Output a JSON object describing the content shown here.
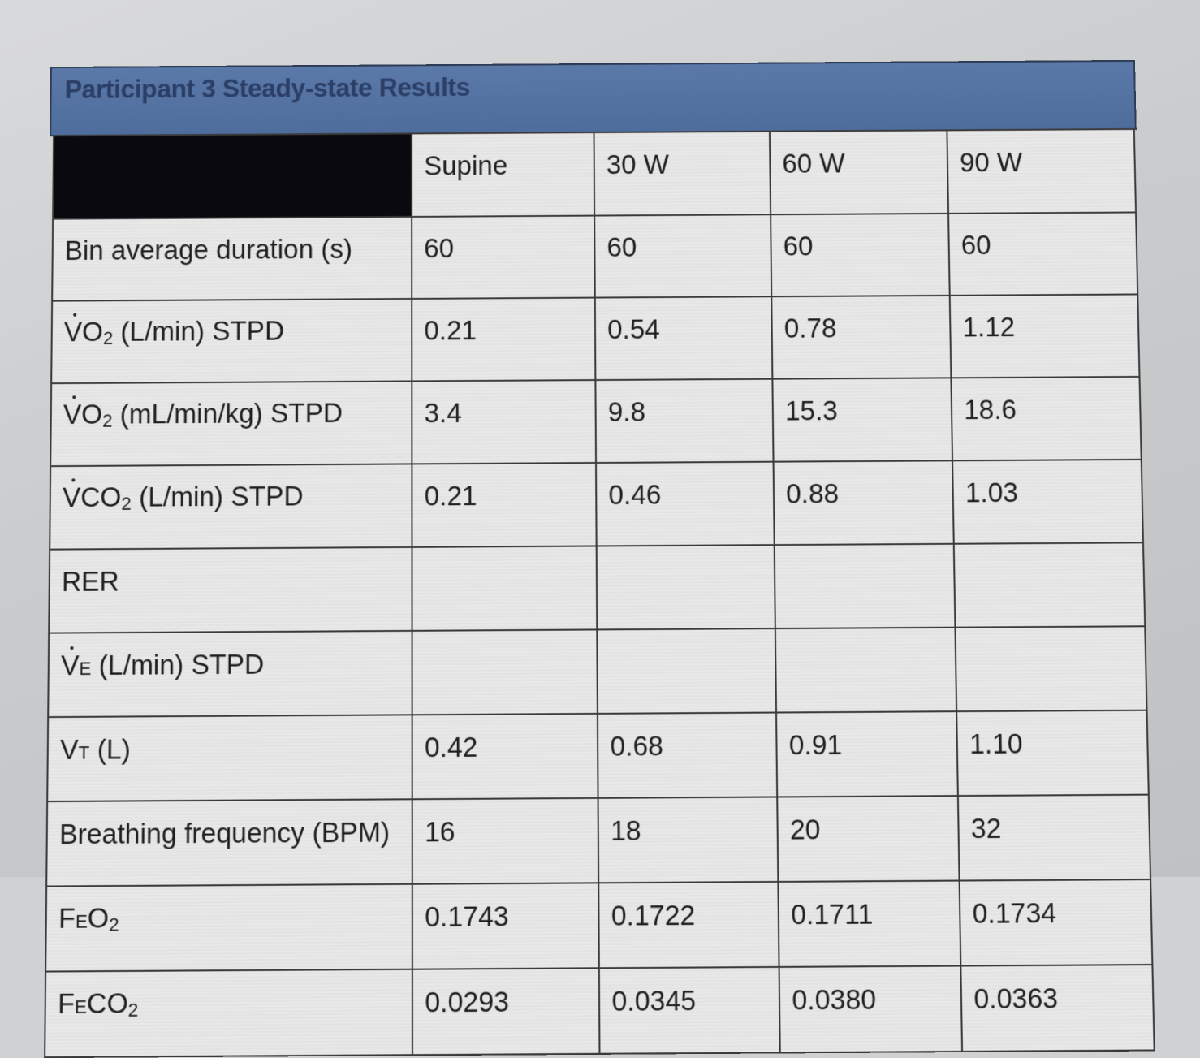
{
  "title": "Participant 3 Steady-state Results",
  "columns": [
    "Supine",
    "30 W",
    "60 W",
    "90 W"
  ],
  "rows": [
    {
      "label": "Bin average duration (s)",
      "values": [
        "60",
        "60",
        "60",
        "60"
      ]
    },
    {
      "label_main": "VO",
      "label_sub": "2",
      "label_rest": " (L/min) STPD",
      "values": [
        "0.21",
        "0.54",
        "0.78",
        "1.12"
      ]
    },
    {
      "label_main": "VO",
      "label_sub": "2",
      "label_rest": " (mL/min/kg) STPD",
      "values": [
        "3.4",
        "9.8",
        "15.3",
        "18.6"
      ]
    },
    {
      "label_main": "VCO",
      "label_sub": "2",
      "label_rest": " (L/min) STPD",
      "values": [
        "0.21",
        "0.46",
        "0.88",
        "1.03"
      ]
    },
    {
      "label": "RER",
      "values": [
        "",
        "",
        "",
        ""
      ]
    },
    {
      "label_main": "V",
      "label_sub": "E",
      "label_rest": " (L/min) STPD",
      "values": [
        "",
        "",
        "",
        ""
      ]
    },
    {
      "label_main": "V",
      "label_sub": "T",
      "label_rest": " (L)",
      "values": [
        "0.42",
        "0.68",
        "0.91",
        "1.10"
      ]
    },
    {
      "label": "Breathing frequency (BPM)",
      "values": [
        "16",
        "18",
        "20",
        "32"
      ]
    },
    {
      "label_main": "F",
      "label_sub": "E",
      "label_rest": "O",
      "label_sub2": "2",
      "values": [
        "0.1743",
        "0.1722",
        "0.1711",
        "0.1734"
      ]
    },
    {
      "label_main": "F",
      "label_sub": "E",
      "label_rest": "CO",
      "label_sub2": "2",
      "values": [
        "0.0293",
        "0.0345",
        "0.0380",
        "0.0363"
      ]
    }
  ],
  "colors": {
    "title_bar": "#5b79a8",
    "title_text": "#2b3e66",
    "header_corner": "#0a0910",
    "cell_bg": "#e8e8e8",
    "grid_line": "#3a3a3a"
  }
}
